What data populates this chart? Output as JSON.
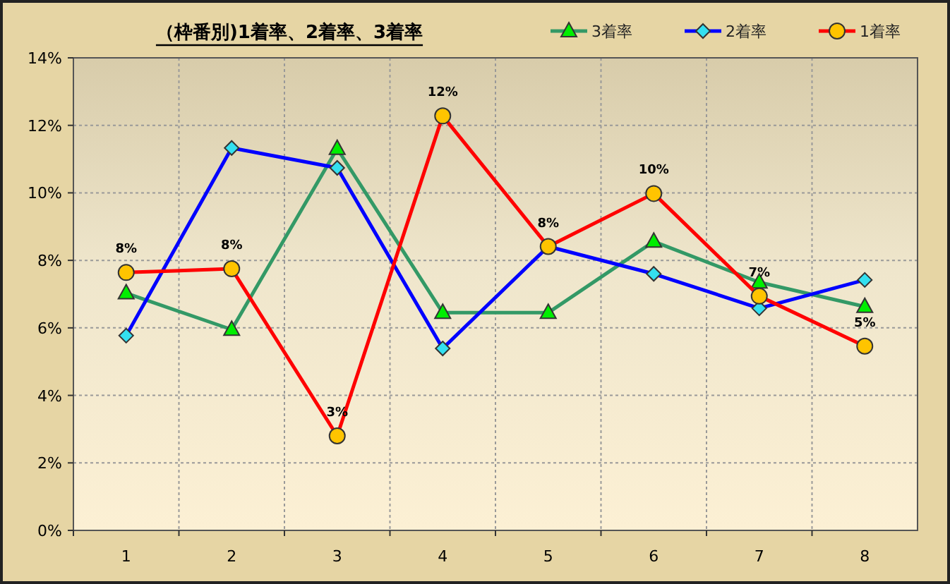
{
  "chart_data": {
    "type": "line",
    "title": "（枠番別)1着率、2着率、3着率",
    "categories": [
      "1",
      "2",
      "3",
      "4",
      "5",
      "6",
      "7",
      "8"
    ],
    "series": [
      {
        "name": "3着率",
        "color": "#339966",
        "marker": "triangle",
        "values": [
          7.03,
          5.95,
          11.31,
          6.45,
          6.45,
          8.56,
          7.35,
          6.63
        ]
      },
      {
        "name": "2着率",
        "color": "#0000ff",
        "marker": "diamond",
        "values": [
          5.77,
          11.33,
          10.74,
          5.39,
          8.41,
          7.6,
          6.58,
          7.42
        ]
      },
      {
        "name": "1着率",
        "color": "#ff0000",
        "marker": "circle",
        "values": [
          7.64,
          7.75,
          2.8,
          12.28,
          8.41,
          9.98,
          6.94,
          5.46
        ],
        "value_labels": [
          "8%",
          "8%",
          "3%",
          "12%",
          "8%",
          "10%",
          "7%",
          "5%"
        ]
      }
    ],
    "ylim": [
      0,
      14
    ],
    "yticks": [
      {
        "value": 0,
        "label": "0%"
      },
      {
        "value": 2,
        "label": "2%"
      },
      {
        "value": 4,
        "label": "4%"
      },
      {
        "value": 6,
        "label": "6%"
      },
      {
        "value": 8,
        "label": "8%"
      },
      {
        "value": 10,
        "label": "10%"
      },
      {
        "value": 12,
        "label": "12%"
      },
      {
        "value": 14,
        "label": "14%"
      }
    ],
    "grid": true,
    "legend": "top right"
  }
}
